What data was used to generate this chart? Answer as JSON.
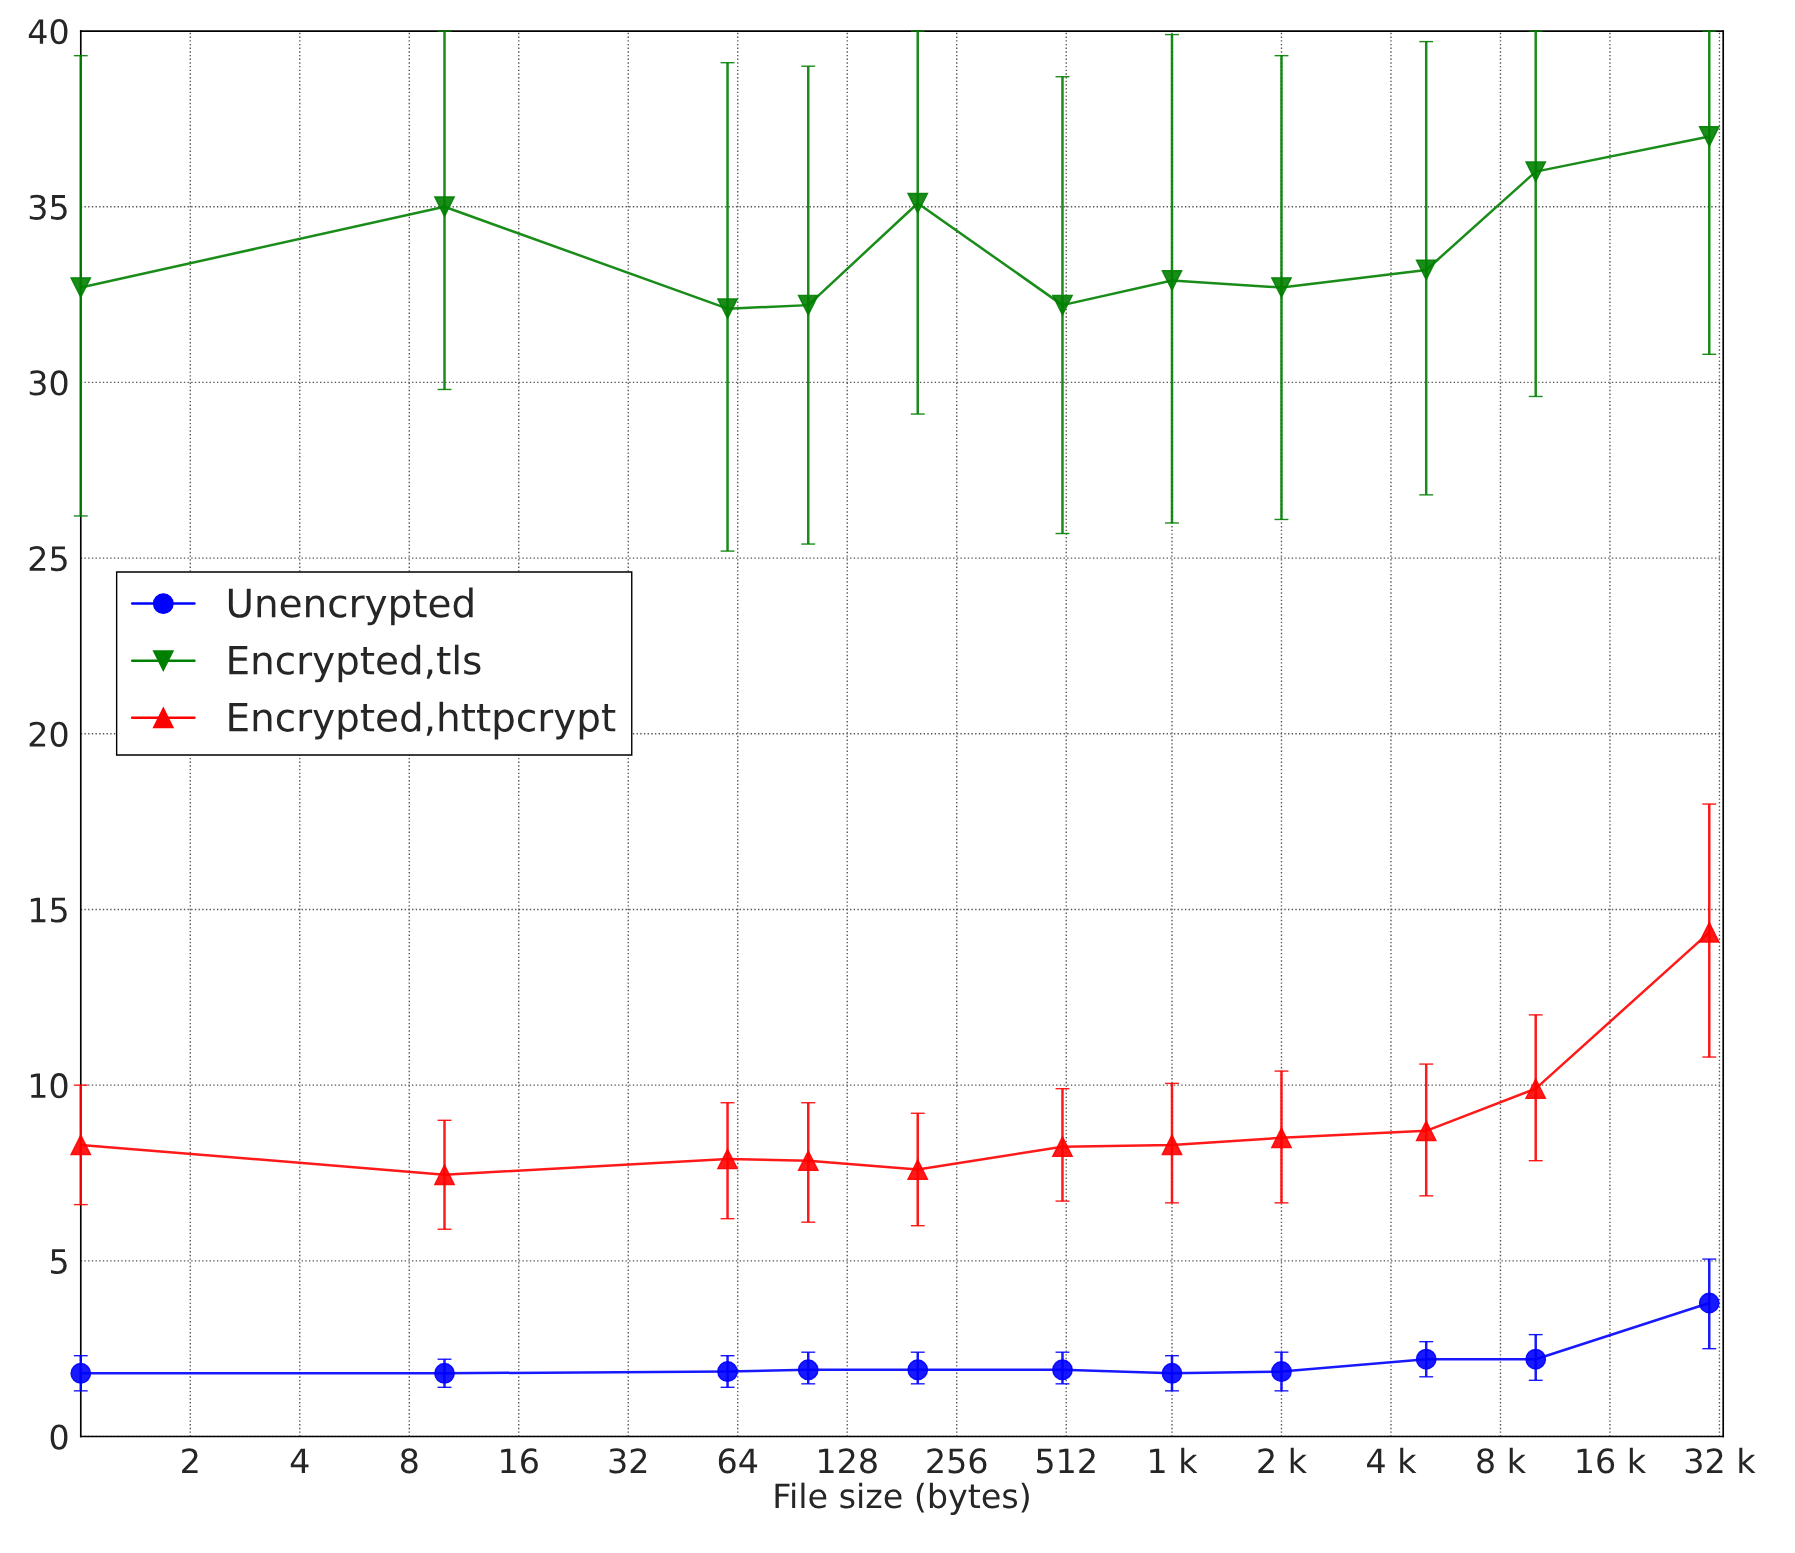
{
  "chart_data": {
    "type": "line",
    "xlabel": "File size (bytes)",
    "log": "x",
    "x": [
      1,
      10,
      60,
      100,
      200,
      500,
      1000,
      2000,
      5000,
      10000,
      30000
    ],
    "xlim": [
      1,
      32768
    ],
    "xticks": [
      2,
      4,
      8,
      16,
      32,
      64,
      128,
      256,
      512,
      {
        "value": 1000,
        "label": "1 k"
      },
      {
        "value": 2000,
        "label": "2 k"
      },
      {
        "value": 4000,
        "label": "4 k"
      },
      {
        "value": 8000,
        "label": "8 k"
      },
      {
        "value": 16000,
        "label": "16 k"
      },
      {
        "value": 32000,
        "label": "32 k"
      }
    ],
    "ylim": [
      0,
      40
    ],
    "yticks": [
      0,
      5,
      10,
      15,
      20,
      25,
      30,
      35,
      40
    ],
    "grid": true,
    "legend": "left",
    "series": [
      {
        "name": "Unencrypted",
        "color": "#0000ff",
        "marker": "circle",
        "values": [
          1.8,
          1.8,
          1.85,
          1.9,
          1.9,
          1.9,
          1.8,
          1.85,
          2.2,
          2.2,
          3.8
        ],
        "errors": [
          [
            1.3,
            2.3
          ],
          [
            1.4,
            2.2
          ],
          [
            1.4,
            2.3
          ],
          [
            1.5,
            2.4
          ],
          [
            1.5,
            2.4
          ],
          [
            1.5,
            2.4
          ],
          [
            1.3,
            2.3
          ],
          [
            1.3,
            2.4
          ],
          [
            1.7,
            2.7
          ],
          [
            1.6,
            2.9
          ],
          [
            2.5,
            5.05
          ]
        ]
      },
      {
        "name": "Encrypted,tls",
        "color": "#008000",
        "marker": "triangle_down",
        "values": [
          32.7,
          35.0,
          32.1,
          32.2,
          35.1,
          32.2,
          32.9,
          32.7,
          33.2,
          36.0,
          37.0
        ],
        "errors": [
          [
            26.2,
            39.3
          ],
          [
            29.8,
            40
          ],
          [
            25.2,
            39.1
          ],
          [
            25.4,
            39.0
          ],
          [
            29.1,
            40
          ],
          [
            25.7,
            38.7
          ],
          [
            26.0,
            39.9
          ],
          [
            26.1,
            39.3
          ],
          [
            26.8,
            39.7
          ],
          [
            29.6,
            40
          ],
          [
            30.8,
            40
          ]
        ]
      },
      {
        "name": "Encrypted,httpcrypt",
        "color": "#ff0000",
        "marker": "triangle",
        "values": [
          8.3,
          7.45,
          7.9,
          7.85,
          7.6,
          8.25,
          8.3,
          8.5,
          8.7,
          9.9,
          14.35
        ],
        "errors": [
          [
            6.6,
            10.0
          ],
          [
            5.9,
            9.0
          ],
          [
            6.2,
            9.5
          ],
          [
            6.1,
            9.5
          ],
          [
            6.0,
            9.2
          ],
          [
            6.7,
            9.9
          ],
          [
            6.65,
            10.05
          ],
          [
            6.65,
            10.4
          ],
          [
            6.85,
            10.6
          ],
          [
            7.85,
            12.0
          ],
          [
            10.8,
            18.0
          ]
        ]
      }
    ]
  }
}
